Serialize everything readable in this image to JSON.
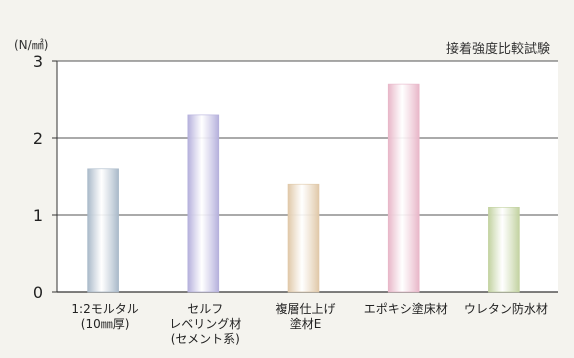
{
  "chart_data": {
    "type": "bar",
    "title": "接着強度比較試験",
    "unit": "(N/㎟)",
    "ylim": [
      0,
      3
    ],
    "yticks": [
      "0",
      "1",
      "2",
      "3"
    ],
    "grid": true,
    "categories": [
      [
        "1:2モルタル",
        "(10㎜厚)"
      ],
      [
        "セルフ",
        "レベリング材",
        "(セメント系)"
      ],
      [
        "複層仕上げ",
        "塗材E"
      ],
      [
        "エポキシ塗床材"
      ],
      [
        "ウレタン防水材"
      ]
    ],
    "values": [
      1.6,
      2.3,
      1.4,
      2.7,
      1.1
    ],
    "colors": [
      "#a9b9c9",
      "#b5b0dc",
      "#e0c8a8",
      "#e8b6c8",
      "#c2d2a0"
    ]
  }
}
